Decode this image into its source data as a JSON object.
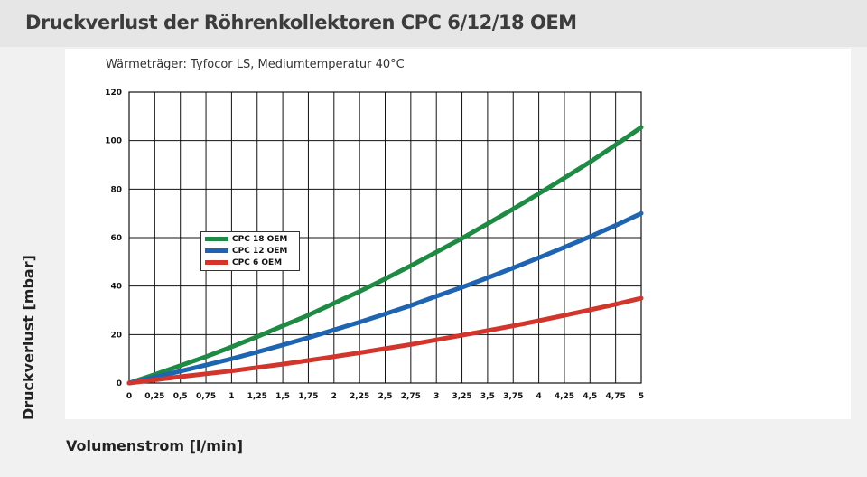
{
  "page": {
    "title": "Druckverlust der Röhrenkollektoren CPC 6/12/18 OEM"
  },
  "chart_data": {
    "type": "line",
    "subtitle": "Wärmeträger: Tyfocor LS, Mediumtemperatur 40°C",
    "xlabel": "Volumenstrom [l/min]",
    "ylabel": "Druckverlust [mbar]",
    "xlim": [
      0,
      5
    ],
    "ylim": [
      0,
      120
    ],
    "grid": true,
    "legend_position": "left-center",
    "x_ticks": [
      "0",
      "0,25",
      "0,5",
      "0,75",
      "1",
      "1,25",
      "1,5",
      "1,75",
      "2",
      "2,25",
      "2,5",
      "2,75",
      "3",
      "3,25",
      "3,5",
      "3,75",
      "4",
      "4,25",
      "4,5",
      "4,75",
      "5"
    ],
    "y_ticks": [
      "0",
      "20",
      "40",
      "60",
      "80",
      "100",
      "120"
    ],
    "series": [
      {
        "name": "CPC 18 OEM",
        "color": "#1e8a44",
        "x": [
          0,
          0.25,
          0.5,
          0.75,
          1,
          1.25,
          1.5,
          1.75,
          2,
          2.25,
          2.5,
          2.75,
          3,
          3.25,
          3.5,
          3.75,
          4,
          4.25,
          4.5,
          4.75,
          5
        ],
        "y": [
          0,
          3.5,
          7.2,
          10.9,
          14.9,
          19.1,
          23.6,
          28.0,
          32.9,
          37.8,
          43.0,
          48.4,
          54.0,
          59.7,
          65.7,
          71.8,
          78.1,
          84.6,
          91.2,
          98.2,
          105.5
        ]
      },
      {
        "name": "CPC 12 OEM",
        "color": "#1f64b0",
        "x": [
          0,
          0.25,
          0.5,
          0.75,
          1,
          1.25,
          1.5,
          1.75,
          2,
          2.25,
          2.5,
          2.75,
          3,
          3.25,
          3.5,
          3.75,
          4,
          4.25,
          4.5,
          4.75,
          5
        ],
        "y": [
          0,
          2.4,
          4.9,
          7.4,
          10.0,
          12.8,
          15.7,
          18.7,
          21.9,
          25.1,
          28.5,
          32.0,
          35.8,
          39.5,
          43.4,
          47.5,
          51.7,
          56.0,
          60.4,
          65.0,
          70.0
        ]
      },
      {
        "name": "CPC 6 OEM",
        "color": "#d2352b",
        "x": [
          0,
          0.25,
          0.5,
          0.75,
          1,
          1.25,
          1.5,
          1.75,
          2,
          2.25,
          2.5,
          2.75,
          3,
          3.25,
          3.5,
          3.75,
          4,
          4.25,
          4.5,
          4.75,
          5
        ],
        "y": [
          0,
          1.3,
          2.6,
          3.8,
          5.0,
          6.4,
          7.8,
          9.3,
          10.9,
          12.5,
          14.2,
          15.9,
          17.8,
          19.7,
          21.6,
          23.6,
          25.7,
          27.9,
          30.2,
          32.5,
          35.0
        ]
      }
    ]
  }
}
